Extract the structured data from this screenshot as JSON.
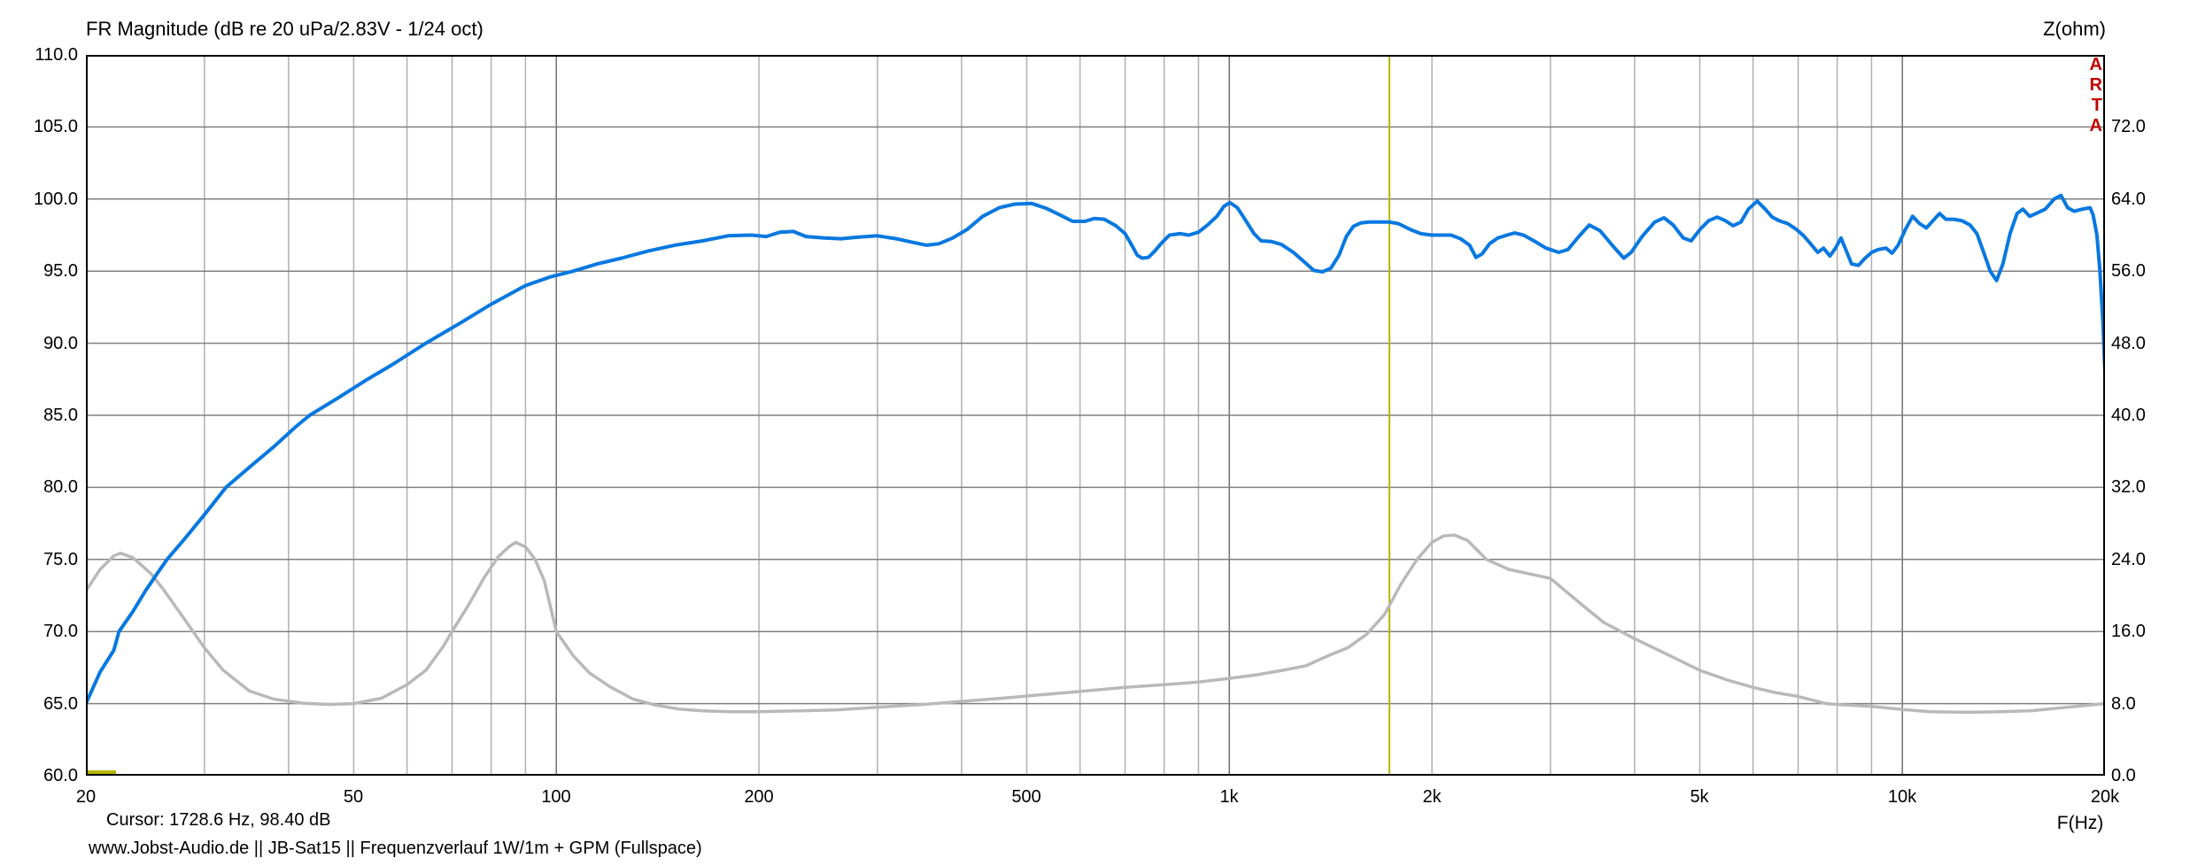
{
  "title": "FR Magnitude (dB re 20 uPa/2.83V - 1/24 oct)",
  "right_axis_title": "Z(ohm)",
  "x_axis_title": "F(Hz)",
  "watermark_letters": [
    "A",
    "R",
    "T",
    "A"
  ],
  "cursor_readout": "Cursor: 1728.6 Hz, 98.40 dB",
  "footer_note": "www.Jobst-Audio.de  ||  JB-Sat15  ||  Frequenzverlauf 1W/1m + GPM (Fullspace)",
  "colors": {
    "fr_curve": "#0878e0",
    "impedance_curve": "#b9b9b9",
    "cursor_line": "#b5b500",
    "cursor_marker": "#b5b500",
    "grid_horizontal": "#808080",
    "grid_vertical_minor": "#b0b0b0",
    "grid_vertical_decade": "#707070",
    "frame": "#000000",
    "watermark_red": "#c00000",
    "text": "#000000",
    "background": "#ffffff"
  },
  "chart_data": {
    "type": "line",
    "x_scale": "log",
    "x_range_hz": [
      20,
      20000
    ],
    "y_left_label": "dB",
    "y_left_range": [
      60,
      110
    ],
    "y_right_label": "Z(ohm)",
    "y_right_range": [
      0,
      80
    ],
    "grid": true,
    "y_left_ticks": [
      {
        "value": 110,
        "label": "110.0"
      },
      {
        "value": 105,
        "label": "105.0"
      },
      {
        "value": 100,
        "label": "100.0"
      },
      {
        "value": 95,
        "label": "95.0"
      },
      {
        "value": 90,
        "label": "90.0"
      },
      {
        "value": 85,
        "label": "85.0"
      },
      {
        "value": 80,
        "label": "80.0"
      },
      {
        "value": 75,
        "label": "75.0"
      },
      {
        "value": 70,
        "label": "70.0"
      },
      {
        "value": 65,
        "label": "65.0"
      },
      {
        "value": 60,
        "label": "60.0"
      }
    ],
    "y_right_ticks": [
      {
        "value": 72,
        "label": "72.0"
      },
      {
        "value": 64,
        "label": "64.0"
      },
      {
        "value": 56,
        "label": "56.0"
      },
      {
        "value": 48,
        "label": "48.0"
      },
      {
        "value": 40,
        "label": "40.0"
      },
      {
        "value": 32,
        "label": "32.0"
      },
      {
        "value": 24,
        "label": "24.0"
      },
      {
        "value": 16,
        "label": "16.0"
      },
      {
        "value": 8,
        "label": "8.0"
      },
      {
        "value": 0,
        "label": "0.0"
      }
    ],
    "x_ticks": [
      {
        "f": 20,
        "label": "20"
      },
      {
        "f": 50,
        "label": "50"
      },
      {
        "f": 100,
        "label": "100"
      },
      {
        "f": 200,
        "label": "200"
      },
      {
        "f": 500,
        "label": "500"
      },
      {
        "f": 1000,
        "label": "1k"
      },
      {
        "f": 2000,
        "label": "2k"
      },
      {
        "f": 5000,
        "label": "5k"
      },
      {
        "f": 10000,
        "label": "10k"
      },
      {
        "f": 20000,
        "label": "20k"
      }
    ],
    "x_grid_minor": [
      30,
      40,
      50,
      60,
      70,
      80,
      90,
      200,
      300,
      400,
      500,
      600,
      700,
      800,
      900,
      2000,
      3000,
      4000,
      5000,
      6000,
      7000,
      8000,
      9000
    ],
    "x_grid_decade": [
      100,
      1000,
      10000
    ],
    "cursor": {
      "freq_hz": 1728.6,
      "level_db": 98.4
    },
    "series": [
      {
        "name": "FR Magnitude",
        "unit": "dB",
        "axis": "left",
        "points": [
          [
            20,
            65
          ],
          [
            21,
            67.2
          ],
          [
            22,
            68.7
          ],
          [
            22.4,
            70
          ],
          [
            23.5,
            71.4
          ],
          [
            24.5,
            72.8
          ],
          [
            25.5,
            74
          ],
          [
            26.4,
            75
          ],
          [
            28,
            76.4
          ],
          [
            30,
            78.1
          ],
          [
            32.3,
            80
          ],
          [
            35,
            81.4
          ],
          [
            38,
            82.8
          ],
          [
            41,
            84.2
          ],
          [
            43,
            85
          ],
          [
            47,
            86.1
          ],
          [
            52,
            87.4
          ],
          [
            57,
            88.5
          ],
          [
            64,
            90
          ],
          [
            72,
            91.4
          ],
          [
            80,
            92.7
          ],
          [
            90,
            94
          ],
          [
            98,
            94.6
          ],
          [
            106,
            95
          ],
          [
            115,
            95.5
          ],
          [
            125,
            95.9
          ],
          [
            137,
            96.4
          ],
          [
            150,
            96.8
          ],
          [
            165,
            97.1
          ],
          [
            180,
            97.45
          ],
          [
            195,
            97.5
          ],
          [
            205,
            97.4
          ],
          [
            215,
            97.7
          ],
          [
            225,
            97.75
          ],
          [
            235,
            97.4
          ],
          [
            250,
            97.3
          ],
          [
            265,
            97.25
          ],
          [
            280,
            97.35
          ],
          [
            300,
            97.45
          ],
          [
            320,
            97.25
          ],
          [
            338,
            97
          ],
          [
            355,
            96.8
          ],
          [
            370,
            96.9
          ],
          [
            388,
            97.3
          ],
          [
            408,
            97.9
          ],
          [
            430,
            98.8
          ],
          [
            455,
            99.4
          ],
          [
            480,
            99.65
          ],
          [
            508,
            99.7
          ],
          [
            535,
            99.35
          ],
          [
            560,
            98.9
          ],
          [
            585,
            98.45
          ],
          [
            610,
            98.45
          ],
          [
            630,
            98.65
          ],
          [
            652,
            98.6
          ],
          [
            678,
            98.15
          ],
          [
            700,
            97.6
          ],
          [
            716,
            96.8
          ],
          [
            730,
            96.1
          ],
          [
            742,
            95.9
          ],
          [
            758,
            95.95
          ],
          [
            775,
            96.4
          ],
          [
            795,
            97
          ],
          [
            815,
            97.5
          ],
          [
            845,
            97.6
          ],
          [
            870,
            97.5
          ],
          [
            900,
            97.7
          ],
          [
            928,
            98.2
          ],
          [
            958,
            98.8
          ],
          [
            982,
            99.5
          ],
          [
            1002,
            99.75
          ],
          [
            1028,
            99.4
          ],
          [
            1058,
            98.5
          ],
          [
            1088,
            97.6
          ],
          [
            1115,
            97.1
          ],
          [
            1155,
            97.05
          ],
          [
            1195,
            96.85
          ],
          [
            1245,
            96.3
          ],
          [
            1295,
            95.6
          ],
          [
            1335,
            95.05
          ],
          [
            1375,
            94.95
          ],
          [
            1415,
            95.2
          ],
          [
            1455,
            96.1
          ],
          [
            1492,
            97.4
          ],
          [
            1528,
            98.1
          ],
          [
            1568,
            98.35
          ],
          [
            1612,
            98.4
          ],
          [
            1728.6,
            98.4
          ],
          [
            1782,
            98.3
          ],
          [
            1818,
            98.1
          ],
          [
            1865,
            97.85
          ],
          [
            1925,
            97.6
          ],
          [
            1995,
            97.5
          ],
          [
            2065,
            97.5
          ],
          [
            2135,
            97.5
          ],
          [
            2205,
            97.25
          ],
          [
            2275,
            96.8
          ],
          [
            2325,
            95.95
          ],
          [
            2375,
            96.2
          ],
          [
            2435,
            96.9
          ],
          [
            2505,
            97.3
          ],
          [
            2585,
            97.5
          ],
          [
            2655,
            97.65
          ],
          [
            2735,
            97.5
          ],
          [
            2835,
            97.1
          ],
          [
            2955,
            96.6
          ],
          [
            3085,
            96.3
          ],
          [
            3185,
            96.5
          ],
          [
            3305,
            97.4
          ],
          [
            3425,
            98.2
          ],
          [
            3555,
            97.8
          ],
          [
            3705,
            96.8
          ],
          [
            3855,
            95.9
          ],
          [
            3955,
            96.3
          ],
          [
            4105,
            97.4
          ],
          [
            4285,
            98.4
          ],
          [
            4425,
            98.7
          ],
          [
            4565,
            98.2
          ],
          [
            4725,
            97.3
          ],
          [
            4855,
            97.1
          ],
          [
            5005,
            97.9
          ],
          [
            5155,
            98.5
          ],
          [
            5305,
            98.75
          ],
          [
            5455,
            98.5
          ],
          [
            5605,
            98.15
          ],
          [
            5755,
            98.4
          ],
          [
            5905,
            99.3
          ],
          [
            6085,
            99.85
          ],
          [
            6255,
            99.3
          ],
          [
            6405,
            98.75
          ],
          [
            6555,
            98.5
          ],
          [
            6755,
            98.3
          ],
          [
            6955,
            97.9
          ],
          [
            7135,
            97.45
          ],
          [
            7305,
            96.9
          ],
          [
            7485,
            96.3
          ],
          [
            7635,
            96.6
          ],
          [
            7805,
            96.05
          ],
          [
            7955,
            96.6
          ],
          [
            8105,
            97.3
          ],
          [
            8255,
            96.4
          ],
          [
            8405,
            95.5
          ],
          [
            8605,
            95.4
          ],
          [
            8805,
            95.9
          ],
          [
            9005,
            96.3
          ],
          [
            9205,
            96.5
          ],
          [
            9455,
            96.6
          ],
          [
            9655,
            96.25
          ],
          [
            9855,
            96.8
          ],
          [
            10105,
            97.9
          ],
          [
            10355,
            98.8
          ],
          [
            10605,
            98.3
          ],
          [
            10855,
            98
          ],
          [
            11105,
            98.5
          ],
          [
            11355,
            99
          ],
          [
            11605,
            98.6
          ],
          [
            11905,
            98.6
          ],
          [
            12255,
            98.5
          ],
          [
            12605,
            98.2
          ],
          [
            12905,
            97.6
          ],
          [
            13205,
            96.3
          ],
          [
            13505,
            95
          ],
          [
            13805,
            94.35
          ],
          [
            14105,
            95.5
          ],
          [
            14455,
            97.6
          ],
          [
            14805,
            99
          ],
          [
            15105,
            99.3
          ],
          [
            15455,
            98.8
          ],
          [
            15805,
            99
          ],
          [
            16305,
            99.3
          ],
          [
            16805,
            100
          ],
          [
            17205,
            100.25
          ],
          [
            17605,
            99.4
          ],
          [
            18005,
            99.15
          ],
          [
            18505,
            99.3
          ],
          [
            19005,
            99.4
          ],
          [
            19205,
            98.9
          ],
          [
            19455,
            97.5
          ],
          [
            19655,
            95
          ],
          [
            19855,
            91.5
          ],
          [
            20000,
            88
          ]
        ]
      },
      {
        "name": "Impedance",
        "unit": "ohm",
        "axis": "right",
        "points": [
          [
            20,
            20.5
          ],
          [
            21,
            22.9
          ],
          [
            22,
            24.4
          ],
          [
            22.5,
            24.7
          ],
          [
            23.5,
            24.2
          ],
          [
            25,
            22.4
          ],
          [
            26,
            20.8
          ],
          [
            28,
            17.4
          ],
          [
            30,
            14.2
          ],
          [
            32,
            11.7
          ],
          [
            35,
            9.4
          ],
          [
            38,
            8.5
          ],
          [
            42,
            8.05
          ],
          [
            46,
            7.9
          ],
          [
            50,
            8
          ],
          [
            55,
            8.6
          ],
          [
            60,
            10.1
          ],
          [
            64,
            11.7
          ],
          [
            68,
            14.4
          ],
          [
            70,
            16
          ],
          [
            74,
            18.9
          ],
          [
            78,
            21.9
          ],
          [
            82,
            24.3
          ],
          [
            85,
            25.4
          ],
          [
            87,
            25.9
          ],
          [
            90,
            25.4
          ],
          [
            93,
            24
          ],
          [
            96,
            21.6
          ],
          [
            100,
            16
          ],
          [
            106,
            13.3
          ],
          [
            112,
            11.4
          ],
          [
            120,
            9.9
          ],
          [
            130,
            8.5
          ],
          [
            140,
            7.85
          ],
          [
            152,
            7.4
          ],
          [
            165,
            7.2
          ],
          [
            180,
            7.1
          ],
          [
            200,
            7.1
          ],
          [
            230,
            7.2
          ],
          [
            260,
            7.3
          ],
          [
            300,
            7.6
          ],
          [
            350,
            7.9
          ],
          [
            400,
            8.25
          ],
          [
            460,
            8.6
          ],
          [
            530,
            9
          ],
          [
            600,
            9.35
          ],
          [
            700,
            9.8
          ],
          [
            800,
            10.1
          ],
          [
            900,
            10.4
          ],
          [
            1000,
            10.8
          ],
          [
            1100,
            11.2
          ],
          [
            1200,
            11.7
          ],
          [
            1300,
            12.2
          ],
          [
            1400,
            13.3
          ],
          [
            1500,
            14.2
          ],
          [
            1600,
            15.7
          ],
          [
            1700,
            17.9
          ],
          [
            1800,
            21.3
          ],
          [
            1900,
            24
          ],
          [
            2000,
            25.9
          ],
          [
            2080,
            26.6
          ],
          [
            2160,
            26.7
          ],
          [
            2260,
            26.1
          ],
          [
            2410,
            24
          ],
          [
            2600,
            22.9
          ],
          [
            3000,
            21.9
          ],
          [
            3300,
            19.3
          ],
          [
            3600,
            17
          ],
          [
            4000,
            15.2
          ],
          [
            4350,
            13.9
          ],
          [
            5000,
            11.7
          ],
          [
            5500,
            10.6
          ],
          [
            6000,
            9.8
          ],
          [
            6500,
            9.2
          ],
          [
            7000,
            8.8
          ],
          [
            7700,
            8
          ],
          [
            8000,
            7.9
          ],
          [
            9000,
            7.7
          ],
          [
            10000,
            7.35
          ],
          [
            11000,
            7.1
          ],
          [
            12000,
            7.05
          ],
          [
            13000,
            7.05
          ],
          [
            14000,
            7.1
          ],
          [
            15500,
            7.2
          ],
          [
            17000,
            7.5
          ],
          [
            18500,
            7.75
          ],
          [
            20000,
            8
          ]
        ]
      }
    ]
  }
}
